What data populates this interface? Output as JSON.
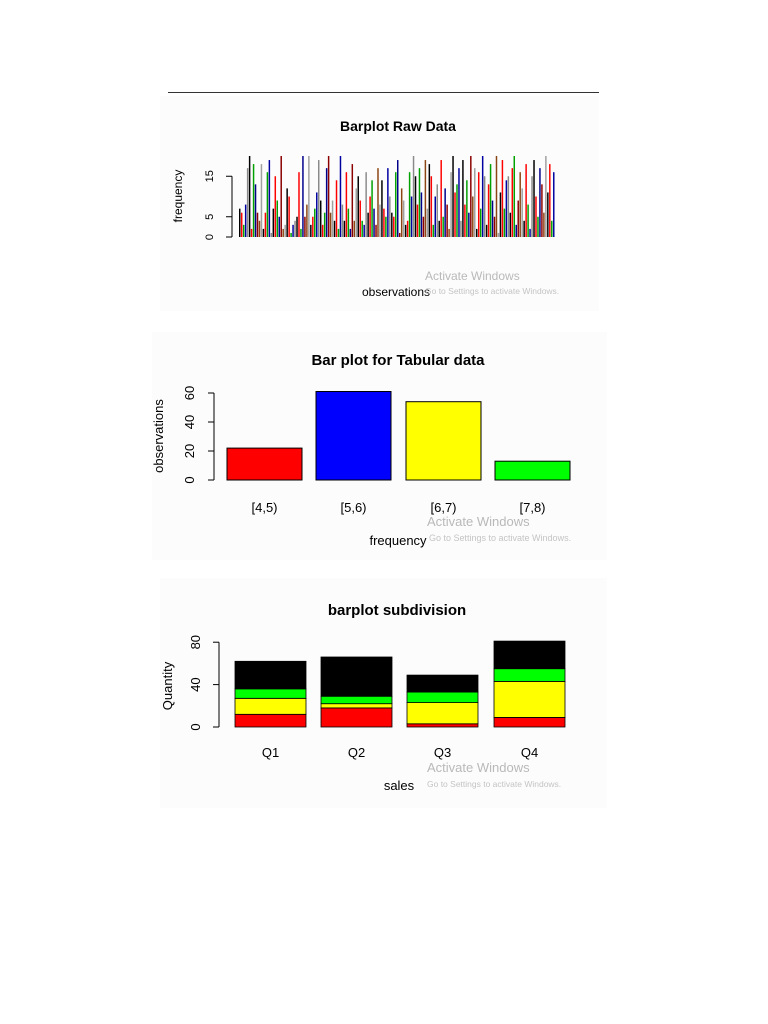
{
  "watermark": {
    "line1": "Activate Windows",
    "line2": "Go to Settings to activate Windows."
  },
  "chart_data": [
    {
      "type": "bar",
      "title": "Barplot Raw Data",
      "xlabel": "observations",
      "ylabel": "frequency",
      "ylim": [
        0,
        20
      ],
      "yticks": [
        0,
        5,
        15
      ],
      "grid": false,
      "legend": "none",
      "palette": [
        "#000000",
        "#ff0000",
        "#00a000",
        "#0000a0",
        "#8a8a8a",
        "#000000",
        "#ff0000",
        "#00a000",
        "#00008b",
        "#8b0000",
        "#8b4513",
        "#a0a0a0"
      ],
      "values": [
        7,
        6,
        3,
        8,
        17,
        20,
        2,
        18,
        13,
        6,
        4,
        18,
        2,
        6,
        16,
        19,
        1,
        7,
        15,
        9,
        5,
        20,
        2,
        3,
        12,
        10,
        1,
        3,
        4,
        5,
        16,
        2,
        20,
        5,
        8,
        20,
        3,
        5,
        7,
        11,
        19,
        9,
        3,
        6,
        17,
        20,
        6,
        9,
        4,
        14,
        2,
        20,
        8,
        4,
        16,
        7,
        2,
        18,
        4,
        12,
        15,
        9,
        4,
        3,
        16,
        6,
        10,
        14,
        7,
        3,
        17,
        8,
        14,
        7,
        5,
        17,
        10,
        6,
        5,
        16,
        19,
        1,
        12,
        9,
        3,
        4,
        16,
        10,
        20,
        15,
        8,
        17,
        11,
        5,
        19,
        7,
        18,
        15,
        3,
        10,
        13,
        4,
        19,
        5,
        12,
        8,
        2,
        16,
        20,
        11,
        13,
        17,
        4,
        19,
        8,
        14,
        6,
        20,
        10,
        17,
        2,
        16,
        7,
        20,
        15,
        3,
        13,
        18,
        9,
        5,
        20,
        1,
        11,
        19,
        7,
        14,
        15,
        6,
        17,
        20,
        3,
        9,
        16,
        12,
        4,
        18,
        8,
        2,
        15,
        19,
        10,
        5,
        17,
        13,
        6,
        20,
        11,
        18,
        4,
        16
      ]
    },
    {
      "type": "bar",
      "title": "Bar plot for Tabular data",
      "xlabel": "frequency",
      "ylabel": "observations",
      "ylim": [
        0,
        65
      ],
      "yticks": [
        0,
        20,
        40,
        60
      ],
      "grid": false,
      "legend": "none",
      "categories": [
        "[4,5)",
        "[5,6)",
        "[6,7)",
        "[7,8)"
      ],
      "values": [
        22,
        61,
        54,
        13
      ],
      "colors": [
        "#ff0000",
        "#0000ff",
        "#ffff00",
        "#00ff00"
      ]
    },
    {
      "type": "bar",
      "stacked": true,
      "title": "barplot subdivision",
      "xlabel": "sales",
      "ylabel": "Quantity",
      "ylim": [
        0,
        85
      ],
      "yticks": [
        0,
        40,
        80
      ],
      "grid": false,
      "legend": "none",
      "categories": [
        "Q1",
        "Q2",
        "Q3",
        "Q4"
      ],
      "series": [
        {
          "values": [
            12,
            18,
            3,
            9
          ],
          "color": "#ff0000"
        },
        {
          "values": [
            15,
            4,
            20,
            34
          ],
          "color": "#ffff00"
        },
        {
          "values": [
            9,
            7,
            10,
            12
          ],
          "color": "#00ff00"
        },
        {
          "values": [
            26,
            37,
            16,
            26
          ],
          "color": "#000000"
        }
      ]
    }
  ]
}
